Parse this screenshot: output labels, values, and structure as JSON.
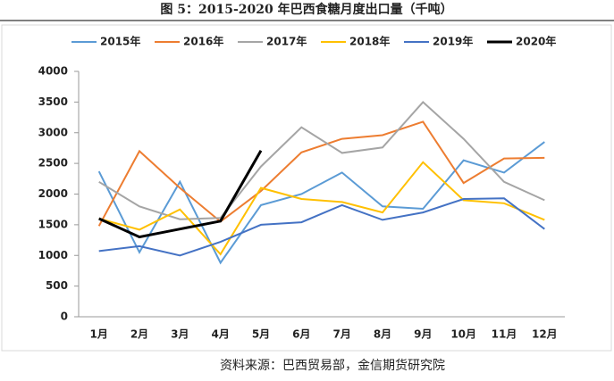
{
  "chart_data": {
    "type": "line",
    "title": "图 5：2015-2020 年巴西食糖月度出口量（千吨）",
    "source": "资料来源：巴西贸易部，金信期货研究院",
    "categories": [
      "1月",
      "2月",
      "3月",
      "4月",
      "5月",
      "6月",
      "7月",
      "8月",
      "9月",
      "10月",
      "11月",
      "12月"
    ],
    "series": [
      {
        "name": "2015年",
        "color": "#5B9BD5",
        "values": [
          2370,
          1050,
          2200,
          880,
          1820,
          2000,
          2350,
          1800,
          1760,
          2550,
          2350,
          2850
        ]
      },
      {
        "name": "2016年",
        "color": "#ED7D31",
        "values": [
          1480,
          2700,
          2100,
          1550,
          2050,
          2680,
          2900,
          2960,
          3180,
          2180,
          2580,
          2590
        ]
      },
      {
        "name": "2017年",
        "color": "#A5A5A5",
        "values": [
          2200,
          1800,
          1590,
          1610,
          2450,
          3090,
          2670,
          2760,
          3500,
          2900,
          2200,
          1900
        ]
      },
      {
        "name": "2018年",
        "color": "#FFC000",
        "values": [
          1600,
          1420,
          1750,
          1020,
          2100,
          1920,
          1870,
          1700,
          2520,
          1900,
          1850,
          1580
        ]
      },
      {
        "name": "2019年",
        "color": "#4472C4",
        "values": [
          1070,
          1150,
          1000,
          1220,
          1500,
          1540,
          1820,
          1580,
          1700,
          1920,
          1930,
          1430
        ]
      },
      {
        "name": "2020年",
        "color": "#000000",
        "values": [
          1600,
          1300,
          1430,
          1560,
          2710,
          null,
          null,
          null,
          null,
          null,
          null,
          null
        ]
      }
    ],
    "ylim": [
      0,
      4000
    ],
    "yticks": [
      0,
      500,
      1000,
      1500,
      2000,
      2500,
      3000,
      3500,
      4000
    ],
    "grid": false
  }
}
